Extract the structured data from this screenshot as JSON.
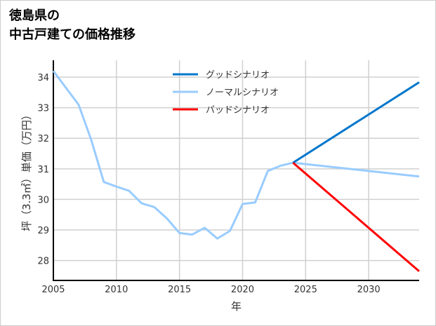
{
  "title_lines": [
    "徳島県の",
    "中古戸建ての価格推移"
  ],
  "chart_data": {
    "type": "line",
    "title": "徳島県の中古戸建ての価格推移",
    "xlabel": "年",
    "ylabel": "坪（3.3㎡）単価（万円）",
    "xlim": [
      2005,
      2034
    ],
    "ylim": [
      27.35,
      34.55
    ],
    "xticks": [
      2005,
      2010,
      2015,
      2020,
      2025,
      2030
    ],
    "yticks": [
      28,
      29,
      30,
      31,
      32,
      33,
      34
    ],
    "grid": true,
    "legend_position": "top-center",
    "series": [
      {
        "name": "グッドシナリオ",
        "color": "#0077cc",
        "x": [
          2024,
          2034
        ],
        "y": [
          31.2,
          33.83
        ]
      },
      {
        "name": "ノーマルシナリオ",
        "color": "#99ccff",
        "x": [
          2005,
          2006,
          2007,
          2008,
          2009,
          2010,
          2011,
          2012,
          2013,
          2014,
          2015,
          2016,
          2017,
          2018,
          2019,
          2020,
          2021,
          2022,
          2023,
          2024,
          2034
        ],
        "y": [
          34.2,
          33.65,
          33.1,
          31.95,
          30.57,
          30.42,
          30.28,
          29.87,
          29.75,
          29.38,
          28.9,
          28.85,
          29.07,
          28.72,
          28.97,
          29.85,
          29.9,
          30.93,
          31.1,
          31.2,
          30.75
        ]
      },
      {
        "name": "バッドシナリオ",
        "color": "#ff0000",
        "x": [
          2024,
          2034
        ],
        "y": [
          31.2,
          27.65
        ]
      }
    ]
  }
}
